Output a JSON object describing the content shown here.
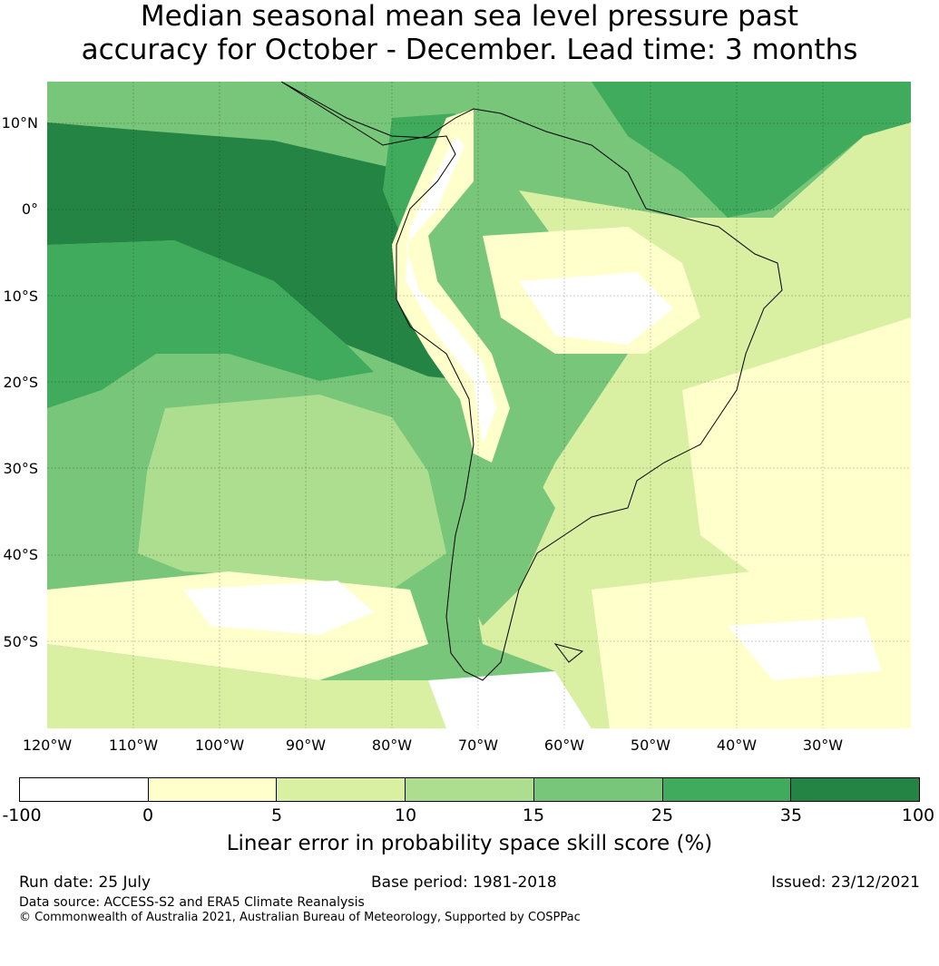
{
  "title_line1": "Median seasonal mean sea level pressure past",
  "title_line2": "accuracy for October - December. Lead time: 3 months",
  "lat_labels": [
    "10°N",
    "0°",
    "10°S",
    "20°S",
    "30°S",
    "40°S",
    "50°S"
  ],
  "lon_labels": [
    "120°W",
    "110°W",
    "100°W",
    "90°W",
    "80°W",
    "70°W",
    "60°W",
    "50°W",
    "40°W",
    "30°W"
  ],
  "colorbar": {
    "ticks": [
      "-100",
      "0",
      "5",
      "10",
      "15",
      "25",
      "35",
      "100"
    ],
    "colors": [
      "#ffffff",
      "#ffffcc",
      "#d9f0a3",
      "#addd8e",
      "#78c679",
      "#41ab5d",
      "#238443"
    ],
    "label": "Linear error in probability space skill score (%)"
  },
  "footer": {
    "run_date": "Run date: 25 July",
    "base_period": "Base period: 1981-2018",
    "issued": "Issued: 23/12/2021",
    "data_source": "Data source: ACCESS-S2 and ERA5 Climate Reanalysis",
    "copyright": "© Commonwealth of Australia 2021, Australian Bureau of Meteorology, Supported by COSPPac"
  }
}
